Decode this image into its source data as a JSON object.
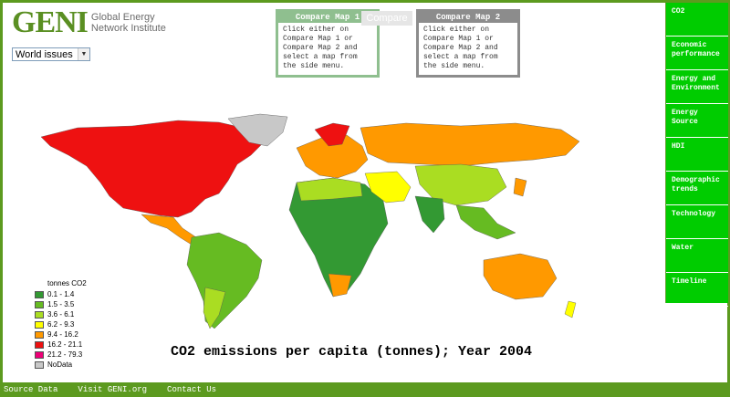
{
  "header": {
    "logo_mark": "GENI",
    "logo_line1": "Global Energy",
    "logo_line2": "Network Institute",
    "issue_select": "World issues"
  },
  "compare": {
    "map1_title": "Compare Map 1",
    "map1_text": "Click either on Compare Map 1 or Compare Map 2 and select a map from the side menu.",
    "button": "Compare",
    "map2_title": "Compare Map 2",
    "map2_text": "Click either on Compare Map 1 or Compare Map 2 and select a map from the side menu."
  },
  "menu": {
    "items": [
      {
        "label": "CO2"
      },
      {
        "label": "Economic performance"
      },
      {
        "label": "Energy and Environment"
      },
      {
        "label": "Energy Source"
      },
      {
        "label": "HDI"
      },
      {
        "label": "Demographic trends"
      },
      {
        "label": "Technology"
      },
      {
        "label": "Water"
      },
      {
        "label": "Timeline"
      }
    ]
  },
  "map": {
    "title": "CO2 emissions per capita (tonnes); Year 2004"
  },
  "legend": {
    "title": "tonnes CO2",
    "items": [
      {
        "label": "0.1 - 1.4",
        "color": "#339933"
      },
      {
        "label": "1.5 - 3.5",
        "color": "#66bb22"
      },
      {
        "label": "3.6 - 6.1",
        "color": "#aadd22"
      },
      {
        "label": "6.2 - 9.3",
        "color": "#ffff00"
      },
      {
        "label": "9.4 - 16.2",
        "color": "#ff9900"
      },
      {
        "label": "16.2 - 21.1",
        "color": "#ee1111"
      },
      {
        "label": "21.2 - 79.3",
        "color": "#ee0077"
      },
      {
        "label": "NoData",
        "color": "#c8c8c8"
      }
    ]
  },
  "footer": {
    "links": [
      "Source Data",
      "Visit GENI.org",
      "Contact Us"
    ]
  }
}
